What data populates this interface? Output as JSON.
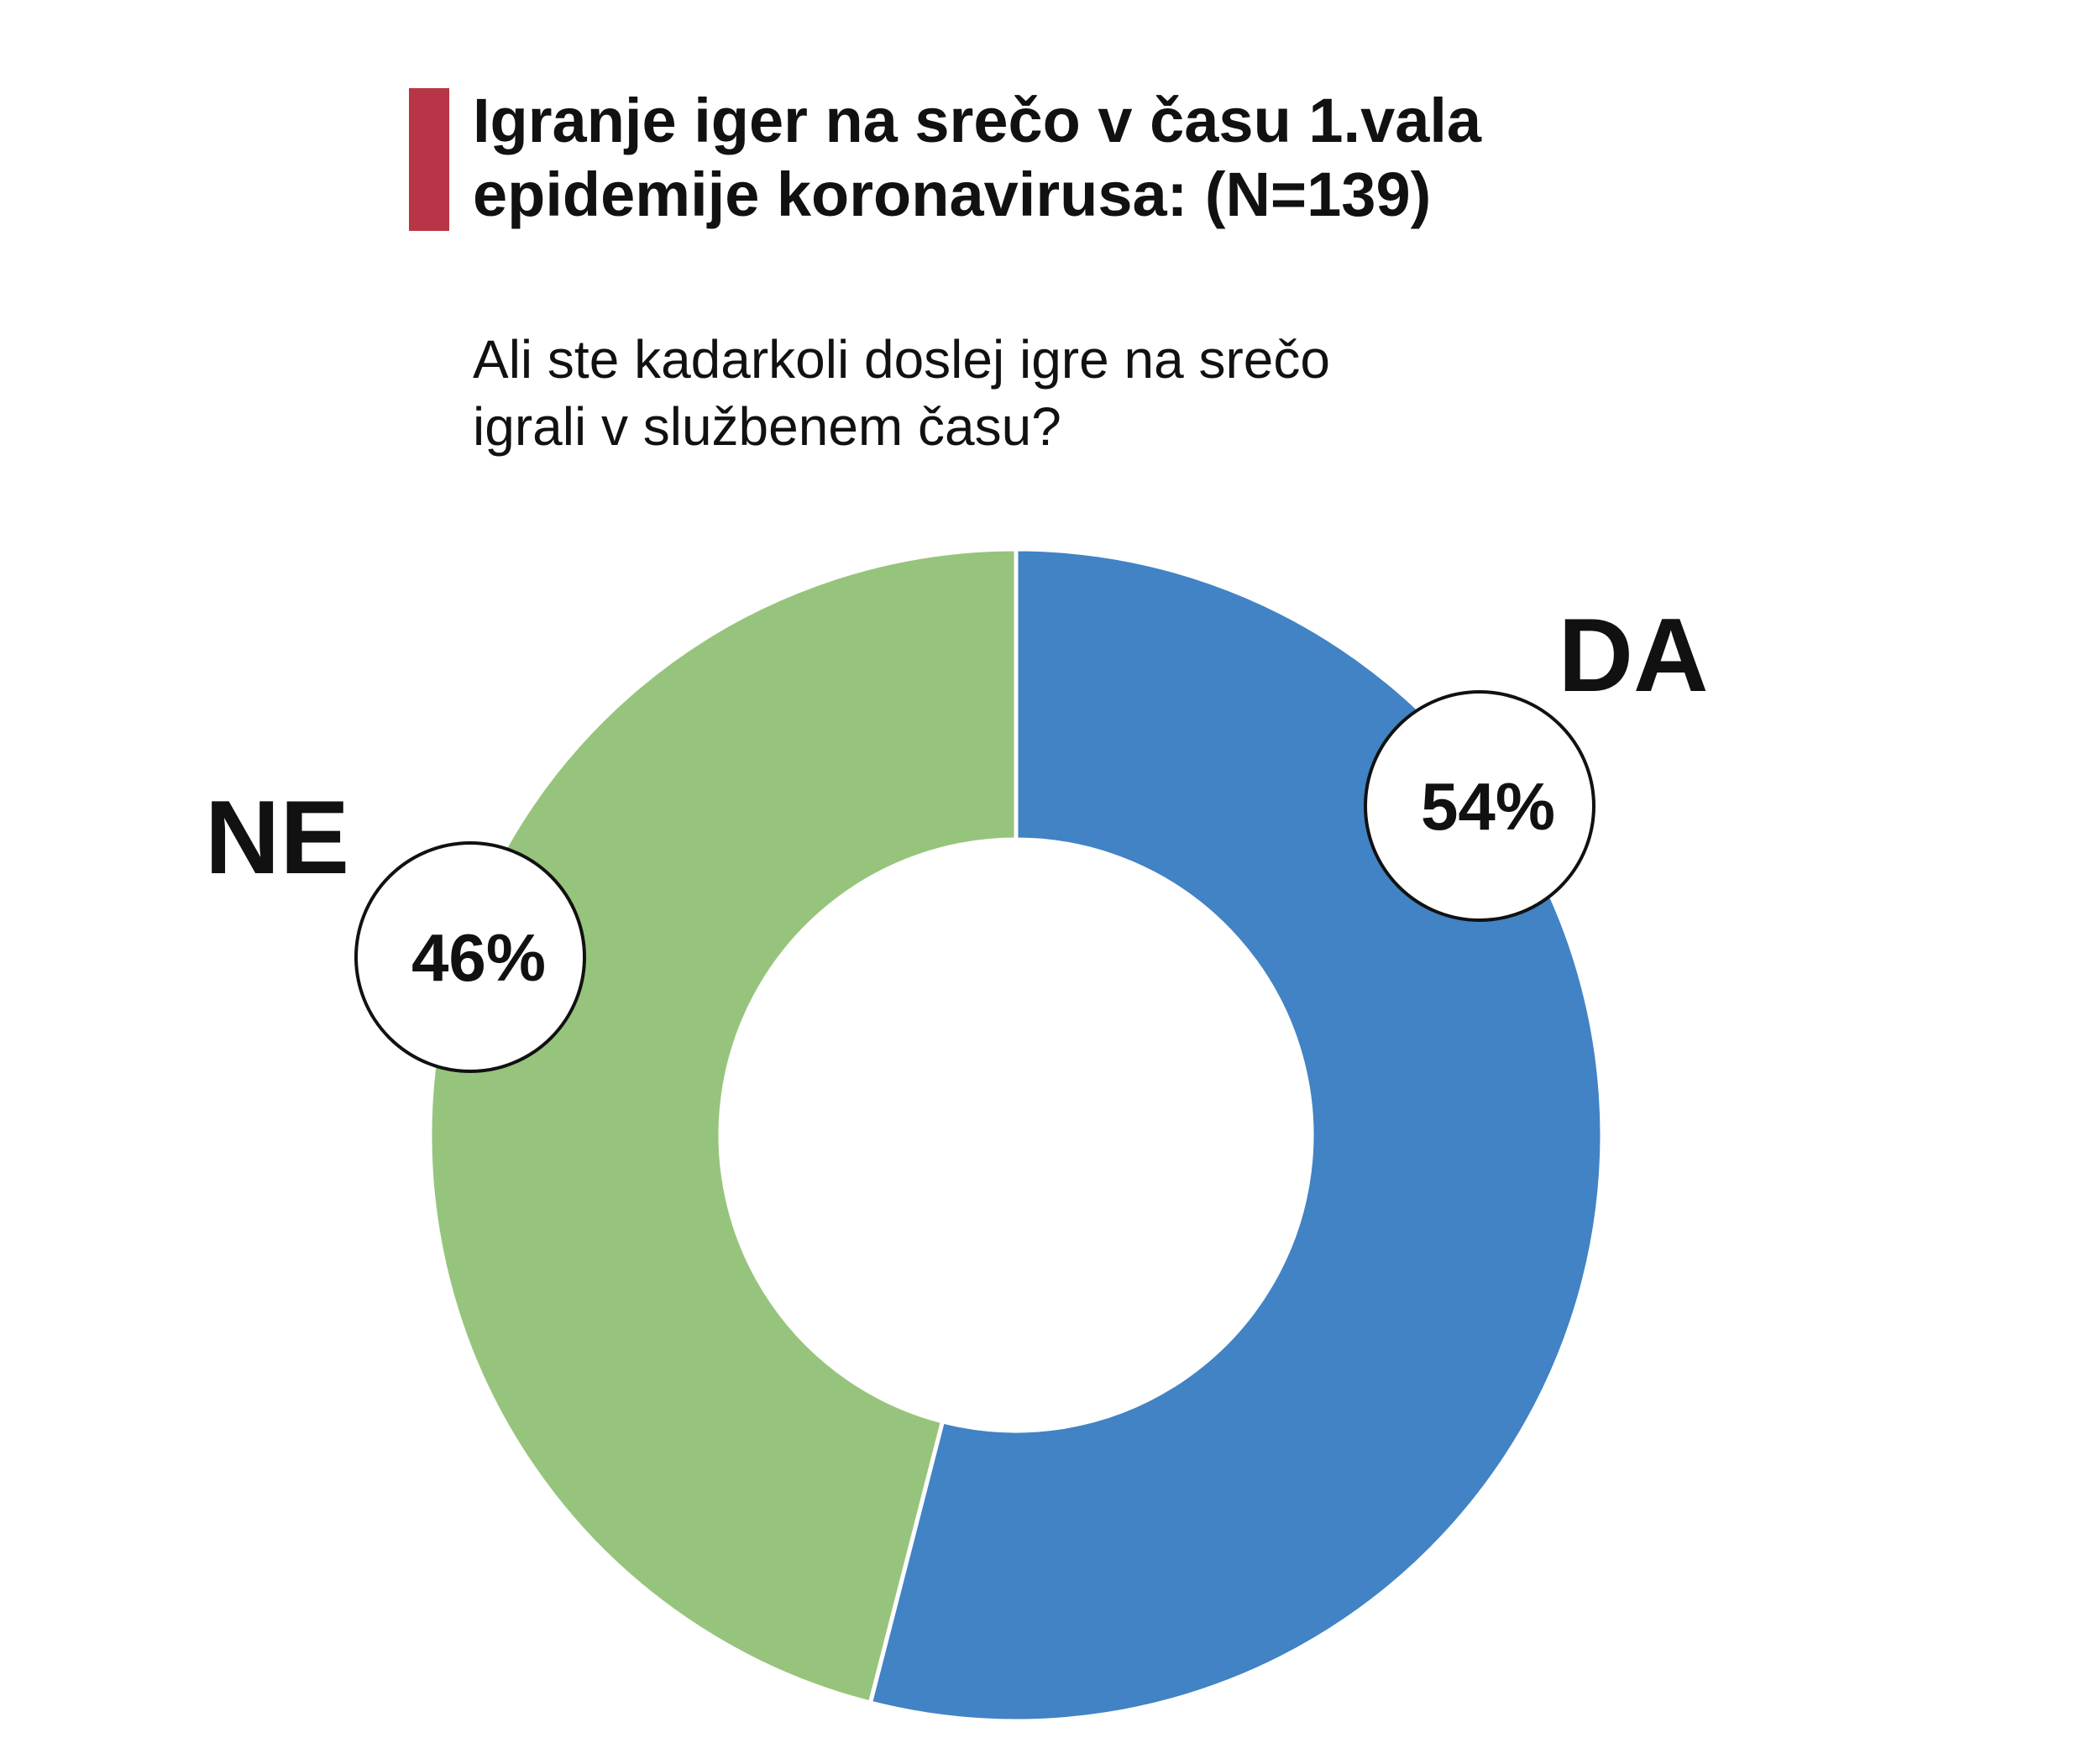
{
  "chart_data": {
    "type": "pie",
    "variant": "donut",
    "title": "Igranje iger na srečo v času 1.vala epidemije koronavirusa: (N=139)",
    "title_lines": [
      "Igranje iger na srečo v času 1.vala",
      "epidemije koronavirusa: (N=139)"
    ],
    "subtitle": "Ali ste kadarkoli doslej igre na srečo igrali v službenem času?",
    "subtitle_lines": [
      "Ali ste kadarkoli doslej igre na srečo",
      "igrali v službenem času?"
    ],
    "accent_color": "#B83547",
    "slices": [
      {
        "label": "DA",
        "value": 54,
        "value_label": "54%",
        "color": "#4183C4"
      },
      {
        "label": "NE",
        "value": 46,
        "value_label": "46%",
        "color": "#97C47C"
      }
    ]
  }
}
